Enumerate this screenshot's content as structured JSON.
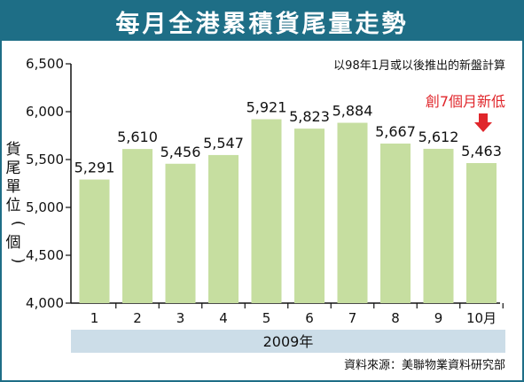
{
  "title": "每月全港累積貨尾量走勢",
  "subtitle": "以98年1月或以後推出的新盤計算",
  "source": "資料來源：美聯物業資料研究部",
  "chart_data": {
    "type": "bar",
    "categories": [
      "1",
      "2",
      "3",
      "4",
      "5",
      "6",
      "7",
      "8",
      "9",
      "10月"
    ],
    "values": [
      5291,
      5610,
      5456,
      5547,
      5921,
      5823,
      5884,
      5667,
      5612,
      5463
    ],
    "value_labels": [
      "5,291",
      "5,610",
      "5,456",
      "5,547",
      "5,921",
      "5,823",
      "5,884",
      "5,667",
      "5,612",
      "5,463"
    ],
    "ylabel_chars": [
      "貨",
      "尾",
      "單",
      "位",
      "(",
      "個",
      ")"
    ],
    "ylim": [
      4000,
      6500
    ],
    "yticks": [
      4000,
      4500,
      5000,
      5500,
      6000,
      6500
    ],
    "ytick_labels": [
      "4,000",
      "4,500",
      "5,000",
      "5,500",
      "6,000",
      "6,500"
    ],
    "xgroup_label": "2009年",
    "annotation": {
      "text": "創7個月新低",
      "category_index": 9
    },
    "bar_color": "#c6dea0",
    "grid": false
  },
  "colors": {
    "title_bg": "#1e6e86",
    "year_band": "#ccdde8",
    "annotation": "#e0262b"
  }
}
